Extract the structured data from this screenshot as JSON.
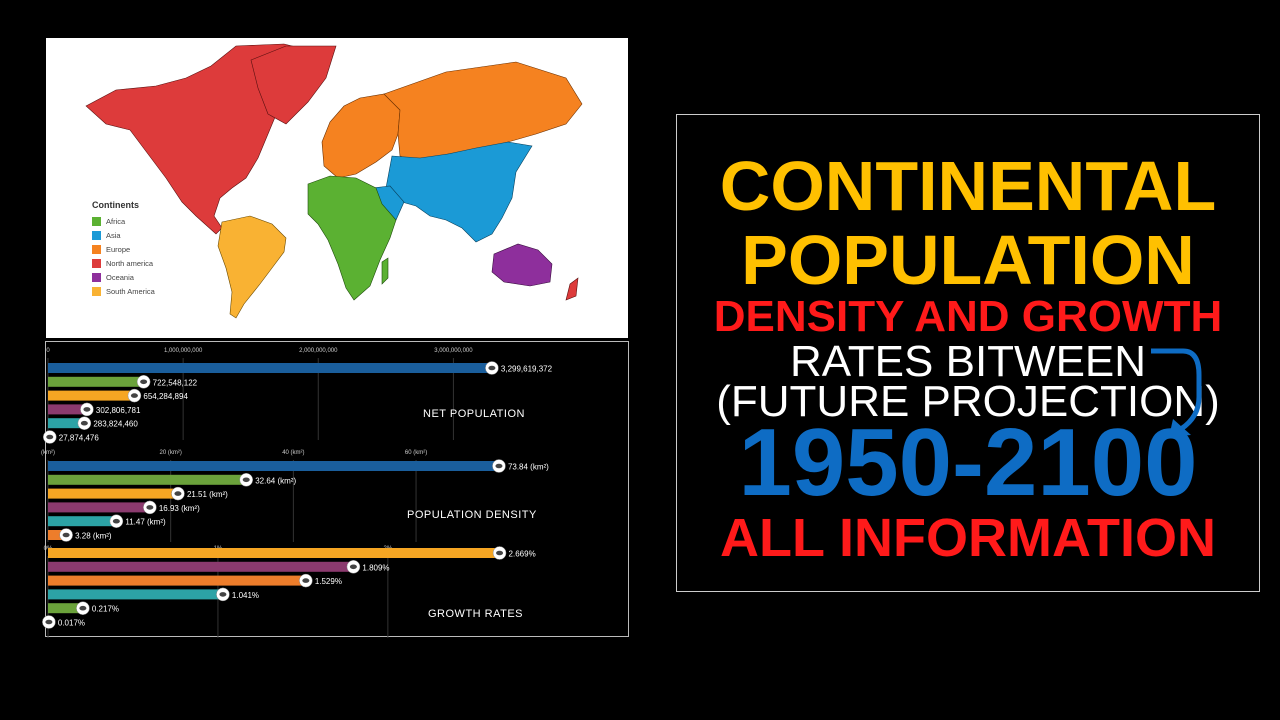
{
  "map": {
    "legend_title": "Continents",
    "legend": [
      {
        "label": "Africa",
        "color": "#5BB132"
      },
      {
        "label": "Asia",
        "color": "#1B9AD6"
      },
      {
        "label": "Europe",
        "color": "#F58220"
      },
      {
        "label": "North america",
        "color": "#DD3B3B"
      },
      {
        "label": "Oceania",
        "color": "#8E2F9C"
      },
      {
        "label": "South America",
        "color": "#F9B233"
      }
    ]
  },
  "title": {
    "line1": "CONTINENTAL",
    "line2": "POPULATION",
    "line3": "DENSITY AND GROWTH",
    "line4": "RATES BITWEEN",
    "line5": "(FUTURE PROJECTION)",
    "line6": "1950-2100",
    "line7": "ALL INFORMATION"
  },
  "chart_data": [
    {
      "type": "bar",
      "title": "NET POPULATION",
      "ticks": [
        "0",
        "1,000,000,000",
        "2,000,000,000",
        "3,000,000,000"
      ],
      "xlim": [
        0,
        3700000000
      ],
      "values": [
        3299619372,
        722548122,
        654284894,
        302806781,
        283824460,
        27874476
      ],
      "labels": [
        "3,299,619,372",
        "722,548,122",
        "654,284,894",
        "302,806,781",
        "283,824,460",
        "27,874,476"
      ],
      "colors": [
        "#1A5E9C",
        "#6BA23B",
        "#F6A623",
        "#8B3A6E",
        "#2CA3A6",
        "#ED7D2B"
      ]
    },
    {
      "type": "bar",
      "title": "POPULATION DENSITY",
      "ticks": [
        "(km²)",
        "20 (km²)",
        "40 (km²)",
        "60 (km²)"
      ],
      "xlim": [
        0,
        82
      ],
      "values": [
        73.84,
        32.64,
        21.51,
        16.93,
        11.47,
        3.28
      ],
      "labels": [
        "73.84 (km²)",
        "32.64 (km²)",
        "21.51 (km²)",
        "16.93 (km²)",
        "11.47 (km²)",
        "3.28 (km²)"
      ],
      "colors": [
        "#1A5E9C",
        "#6BA23B",
        "#F6A623",
        "#8B3A6E",
        "#2CA3A6",
        "#ED7D2B"
      ]
    },
    {
      "type": "bar",
      "title": "GROWTH RATES",
      "ticks": [
        "0%",
        "1%",
        "2%"
      ],
      "xlim": [
        0,
        2.96
      ],
      "values": [
        2.669,
        1.809,
        1.529,
        1.041,
        0.217,
        0.017
      ],
      "labels": [
        "2.669%",
        "1.809%",
        "1.529%",
        "1.041%",
        "0.217%",
        "0.017%"
      ],
      "colors": [
        "#F6A623",
        "#8B3A6E",
        "#ED7D2B",
        "#2CA3A6",
        "#6BA23B",
        "#1A5E9C"
      ]
    }
  ]
}
